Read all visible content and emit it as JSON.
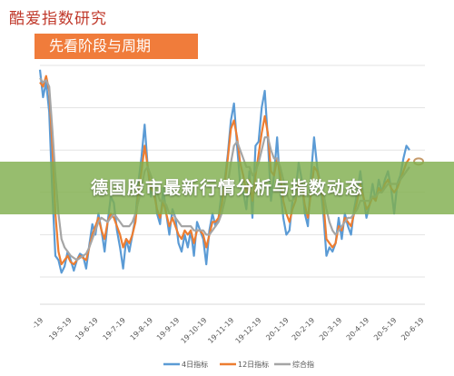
{
  "brand": "酷爱指数研究",
  "section_title": "先看阶段与周期",
  "banner_title": "德国股市最新行情分析与指数动态",
  "chart_data": {
    "type": "line",
    "title": "",
    "xlabel": "",
    "ylabel": "",
    "ylim": [
      0,
      100
    ],
    "grid": true,
    "legend_position": "bottom",
    "x_ticks": [
      "-19",
      "19-5-19",
      "19-6-19",
      "19-7-19",
      "19-8-19",
      "19-9-19",
      "19-10-19",
      "19-11-19",
      "19-12-19",
      "20-1-19",
      "20-2-19",
      "20-3-19",
      "20-4-19",
      "20-5-19",
      "20-6-19"
    ],
    "x_tick_positions": [
      0,
      9.2,
      17.8,
      26.7,
      35.6,
      44.2,
      53.1,
      61.9,
      70.8,
      79.7,
      88.1,
      97,
      105.8,
      114.7,
      123.6
    ],
    "x_range": [
      0,
      125
    ],
    "series": [
      {
        "name": "4日指标",
        "color": "#5b9bd5",
        "x": [
          0,
          1,
          2,
          3,
          4,
          5,
          6,
          7,
          8,
          9,
          10,
          11,
          12,
          13,
          14,
          15,
          16,
          17,
          18,
          19,
          20,
          21,
          22,
          23,
          24,
          25,
          26,
          27,
          28,
          29,
          30,
          31,
          32,
          33,
          34,
          35,
          36,
          37,
          38,
          39,
          40,
          41,
          42,
          43,
          44,
          45,
          46,
          47,
          48,
          49,
          50,
          51,
          52,
          53,
          54,
          55,
          56,
          57,
          58,
          59,
          60,
          61,
          62,
          63,
          64,
          65,
          66,
          67,
          68,
          69,
          70,
          71,
          72,
          73,
          74,
          75,
          76,
          77,
          78,
          79,
          80,
          81,
          82,
          83,
          84,
          85,
          86,
          87,
          88,
          89,
          90,
          91,
          92,
          93,
          94,
          95,
          96,
          97,
          98,
          99,
          100,
          101,
          102,
          103,
          104,
          105,
          106,
          107,
          108,
          109,
          110,
          111,
          112,
          113,
          114,
          115,
          116,
          117,
          118,
          119,
          120
        ],
        "y": [
          98,
          85,
          92,
          78,
          40,
          10,
          8,
          2,
          5,
          12,
          8,
          3,
          8,
          11,
          10,
          4,
          15,
          25,
          20,
          30,
          22,
          12,
          26,
          38,
          35,
          22,
          14,
          4,
          18,
          12,
          20,
          28,
          45,
          57,
          72,
          52,
          38,
          46,
          30,
          25,
          42,
          30,
          20,
          32,
          28,
          16,
          12,
          20,
          14,
          22,
          10,
          26,
          22,
          18,
          6,
          22,
          30,
          24,
          28,
          40,
          46,
          58,
          74,
          82,
          62,
          44,
          40,
          32,
          50,
          28,
          62,
          64,
          80,
          88,
          65,
          36,
          48,
          66,
          42,
          28,
          20,
          22,
          36,
          40,
          54,
          46,
          30,
          24,
          48,
          66,
          52,
          44,
          30,
          10,
          14,
          12,
          16,
          28,
          18,
          30,
          24,
          20,
          32,
          40,
          50,
          38,
          28,
          34,
          44,
          36,
          46,
          40,
          46,
          50,
          42,
          30,
          44,
          48,
          56,
          62,
          60
        ]
      },
      {
        "name": "12日指标",
        "color": "#ed7d31",
        "x": [
          0,
          1,
          2,
          3,
          4,
          5,
          6,
          7,
          8,
          9,
          10,
          11,
          12,
          13,
          14,
          15,
          16,
          17,
          18,
          19,
          20,
          21,
          22,
          23,
          24,
          25,
          26,
          27,
          28,
          29,
          30,
          31,
          32,
          33,
          34,
          35,
          36,
          37,
          38,
          39,
          40,
          41,
          42,
          43,
          44,
          45,
          46,
          47,
          48,
          49,
          50,
          51,
          52,
          53,
          54,
          55,
          56,
          57,
          58,
          59,
          60,
          61,
          62,
          63,
          64,
          65,
          66,
          67,
          68,
          69,
          70,
          71,
          72,
          73,
          74,
          75,
          76,
          77,
          78,
          79,
          80,
          81,
          82,
          83,
          84,
          85,
          86,
          87,
          88,
          89,
          90,
          91,
          92,
          93,
          94,
          95,
          96,
          97,
          98,
          99,
          100,
          101,
          102,
          103,
          104,
          105,
          106,
          107,
          108,
          109,
          110,
          111,
          112,
          113,
          114,
          115,
          116,
          117,
          118,
          119,
          120
        ],
        "y": [
          92,
          90,
          95,
          88,
          62,
          30,
          12,
          6,
          8,
          10,
          7,
          6,
          8,
          10,
          9,
          8,
          14,
          20,
          24,
          28,
          22,
          18,
          26,
          30,
          28,
          24,
          20,
          14,
          18,
          16,
          20,
          26,
          40,
          50,
          62,
          52,
          42,
          40,
          32,
          28,
          36,
          30,
          24,
          28,
          24,
          20,
          18,
          22,
          20,
          22,
          16,
          22,
          22,
          20,
          14,
          20,
          26,
          26,
          28,
          34,
          44,
          56,
          70,
          74,
          66,
          54,
          48,
          40,
          46,
          36,
          48,
          58,
          68,
          76,
          68,
          50,
          48,
          56,
          48,
          36,
          30,
          26,
          32,
          36,
          46,
          44,
          34,
          28,
          40,
          52,
          50,
          44,
          36,
          18,
          16,
          14,
          16,
          24,
          22,
          28,
          26,
          24,
          30,
          36,
          44,
          38,
          32,
          34,
          38,
          36,
          42,
          40,
          44,
          46,
          42,
          40,
          42,
          46,
          50,
          54,
          56
        ]
      },
      {
        "name": "综合指",
        "color": "#a5a5a5",
        "x": [
          0,
          1,
          2,
          3,
          4,
          5,
          6,
          7,
          8,
          9,
          10,
          11,
          12,
          13,
          14,
          15,
          16,
          17,
          18,
          19,
          20,
          21,
          22,
          23,
          24,
          25,
          26,
          27,
          28,
          29,
          30,
          31,
          32,
          33,
          34,
          35,
          36,
          37,
          38,
          39,
          40,
          41,
          42,
          43,
          44,
          45,
          46,
          47,
          48,
          49,
          50,
          51,
          52,
          53,
          54,
          55,
          56,
          57,
          58,
          59,
          60,
          61,
          62,
          63,
          64,
          65,
          66,
          67,
          68,
          69,
          70,
          71,
          72,
          73,
          74,
          75,
          76,
          77,
          78,
          79,
          80,
          81,
          82,
          83,
          84,
          85,
          86,
          87,
          88,
          89,
          90,
          91,
          92,
          93,
          94,
          95,
          96,
          97,
          98,
          99,
          100,
          101,
          102,
          103,
          104,
          105,
          106,
          107,
          108,
          109,
          110,
          111,
          112,
          113,
          114,
          115,
          116,
          117,
          118,
          119,
          120
        ],
        "y": [
          94,
          92,
          93,
          90,
          70,
          48,
          30,
          18,
          14,
          12,
          10,
          9,
          8,
          9,
          10,
          11,
          14,
          18,
          22,
          26,
          28,
          27,
          26,
          28,
          30,
          28,
          26,
          24,
          24,
          24,
          26,
          30,
          36,
          42,
          50,
          52,
          48,
          44,
          40,
          36,
          36,
          34,
          30,
          30,
          28,
          26,
          24,
          24,
          24,
          24,
          22,
          22,
          22,
          22,
          20,
          20,
          22,
          24,
          26,
          30,
          36,
          44,
          54,
          62,
          64,
          60,
          56,
          52,
          52,
          48,
          50,
          54,
          60,
          66,
          66,
          60,
          56,
          56,
          52,
          46,
          40,
          36,
          36,
          38,
          42,
          44,
          42,
          38,
          40,
          44,
          46,
          44,
          40,
          32,
          26,
          22,
          20,
          22,
          24,
          26,
          28,
          28,
          30,
          32,
          36,
          36,
          36,
          36,
          38,
          38,
          40,
          40,
          42,
          44,
          44,
          44,
          44,
          46,
          48,
          50,
          52
        ]
      }
    ]
  }
}
